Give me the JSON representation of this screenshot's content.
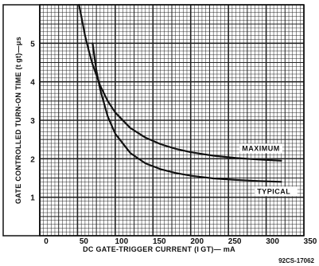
{
  "chart_data": {
    "type": "line",
    "xlabel": "DC GATE-TRIGGER CURRENT (I GT)— mA",
    "ylabel": "GATE CONTROLLED TURN-ON TIME (t gt)—μs",
    "xlim": [
      0,
      350
    ],
    "ylim": [
      0,
      6
    ],
    "x_ticks": [
      "0",
      "50",
      "100",
      "150",
      "200",
      "250",
      "300",
      "350"
    ],
    "y_ticks": [
      "1",
      "2",
      "3",
      "4",
      "5"
    ],
    "grid": true,
    "series": [
      {
        "name": "MAXIMUM",
        "x": [
          52,
          55,
          60,
          65,
          70,
          80,
          90,
          100,
          120,
          140,
          160,
          180,
          200,
          230,
          260,
          290,
          320
        ],
        "y": [
          6.0,
          5.7,
          5.2,
          4.8,
          4.45,
          3.9,
          3.5,
          3.2,
          2.8,
          2.55,
          2.38,
          2.26,
          2.17,
          2.08,
          2.02,
          1.98,
          1.95
        ]
      },
      {
        "name": "TYPICAL",
        "x": [
          70,
          75,
          80,
          90,
          100,
          120,
          140,
          160,
          180,
          200,
          230,
          260,
          290,
          320
        ],
        "y": [
          5.0,
          4.3,
          3.8,
          3.1,
          2.65,
          2.15,
          1.88,
          1.73,
          1.63,
          1.56,
          1.49,
          1.45,
          1.42,
          1.4
        ]
      }
    ],
    "figure_id": "92CS-17062"
  }
}
